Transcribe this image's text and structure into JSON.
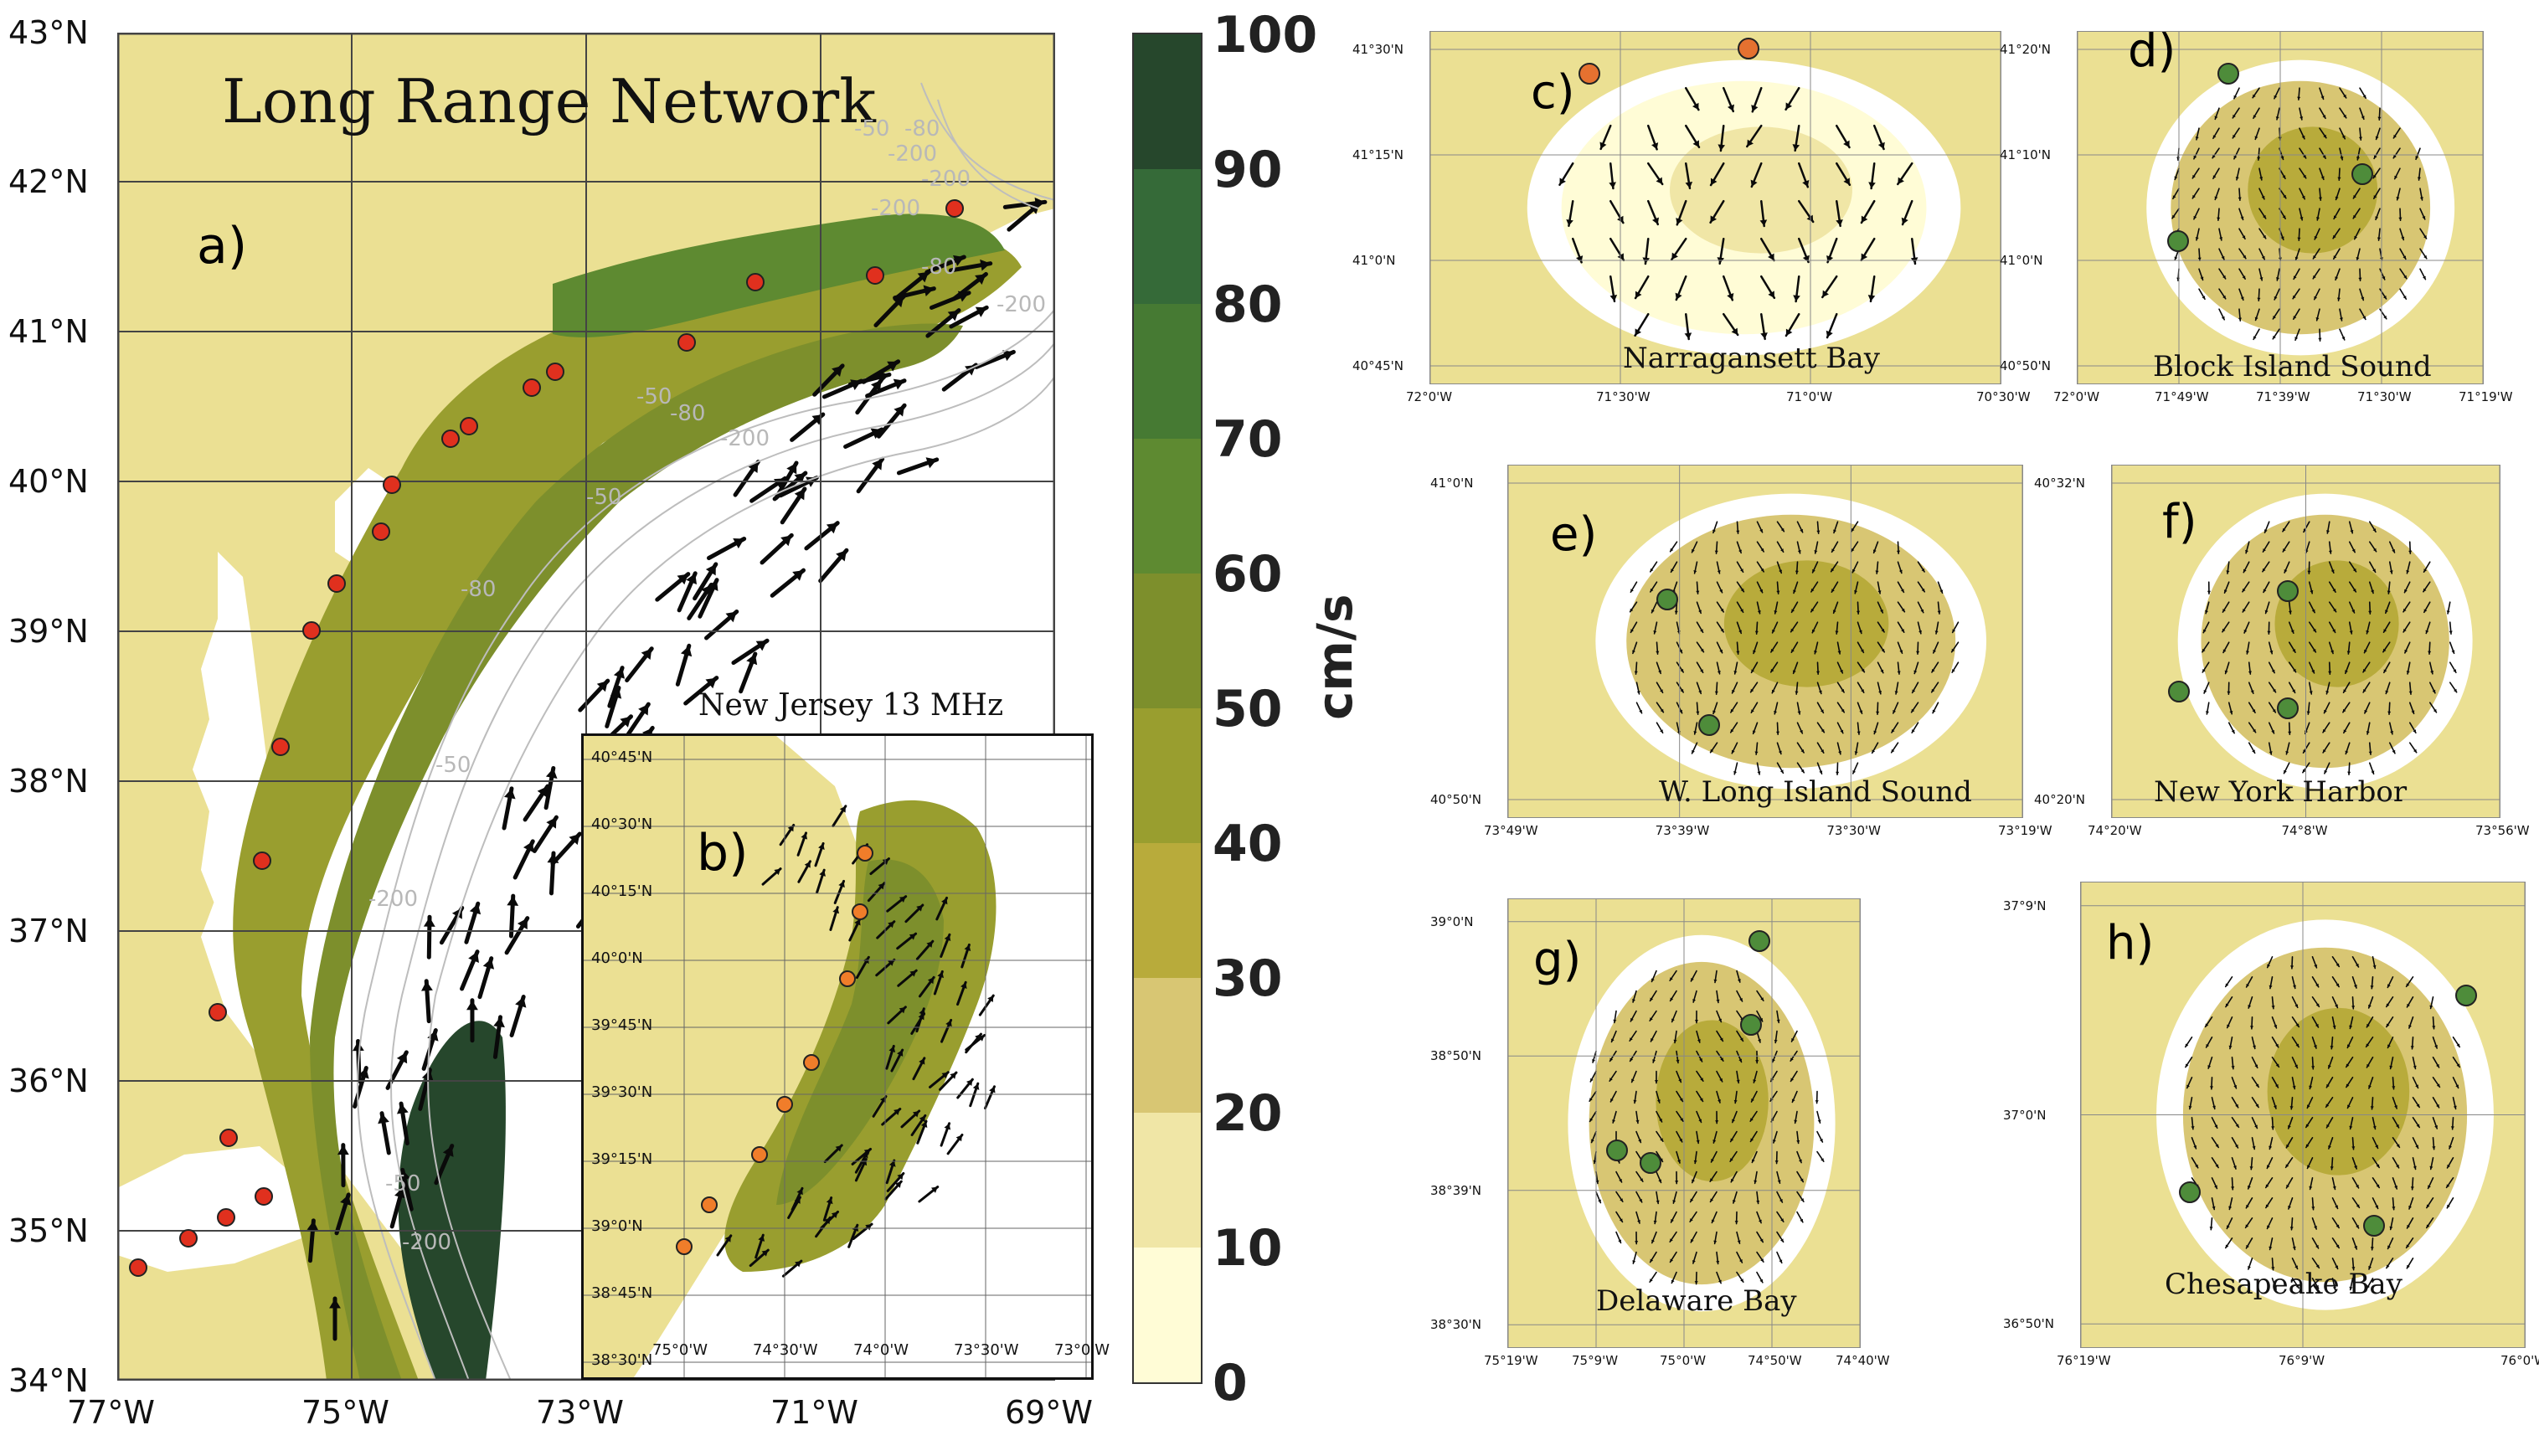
{
  "main_map": {
    "title": "Long Range Network",
    "label": "a)",
    "lat_ticks": [
      "43°N",
      "42°N",
      "41°N",
      "40°N",
      "39°N",
      "38°N",
      "37°N",
      "36°N",
      "35°N",
      "34°N"
    ],
    "lon_ticks": [
      "77°W",
      "75°W",
      "73°W",
      "71°W",
      "69°W"
    ],
    "contour_labels": [
      "-200",
      "-50",
      "-80",
      "-200",
      "-200",
      "-80",
      "-200",
      "-50",
      "-80",
      "-200",
      "-50",
      "-80",
      "-50",
      "-200",
      "-50",
      "-200",
      "-80"
    ],
    "colors": {
      "land": "#ebe093",
      "water": "#ffffff",
      "frame": "#444444",
      "site": "#e0301e",
      "arrow": "#0a0a0a"
    }
  },
  "inset_b": {
    "title": "New Jersey 13 MHz",
    "label": "b)",
    "lat_ticks": [
      "40°45'N",
      "40°30'N",
      "40°15'N",
      "40°0'N",
      "39°45'N",
      "39°30'N",
      "39°15'N",
      "39°0'N",
      "38°45'N",
      "38°30'N"
    ],
    "lon_ticks": [
      "75°0'W",
      "74°30'W",
      "74°0'W",
      "73°30'W",
      "73°0'W"
    ],
    "site_color": "#f07d2a"
  },
  "colorbar": {
    "unit": "cm/s",
    "ticks": [
      "100",
      "90",
      "80",
      "70",
      "60",
      "50",
      "40",
      "30",
      "20",
      "10",
      "0"
    ],
    "colors": [
      "#fffcd6",
      "#f0e6a6",
      "#d8c673",
      "#b8ab3b",
      "#999e2f",
      "#7d8f2c",
      "#5e8a31",
      "#467a33",
      "#356a38",
      "#26472c",
      "#13201a"
    ]
  },
  "panels": [
    {
      "key": "c",
      "label": "c)",
      "title": "Narragansett Bay",
      "lat_ticks": [
        "41°30'N",
        "41°15'N",
        "41°0'N",
        "40°45'N"
      ],
      "lon_ticks": [
        "72°0'W",
        "71°30'W",
        "71°0'W",
        "70°30'W"
      ]
    },
    {
      "key": "d",
      "label": "d)",
      "title": "Block Island Sound",
      "lat_ticks": [
        "41°20'N",
        "41°10'N",
        "41°0'N",
        "40°50'N"
      ],
      "lon_ticks": [
        "72°0'W",
        "71°49'W",
        "71°39'W",
        "71°30'W",
        "71°19'W"
      ]
    },
    {
      "key": "e",
      "label": "e)",
      "title": "W. Long Island Sound",
      "lat_ticks": [
        "41°0'N",
        "40°50'N"
      ],
      "lon_ticks": [
        "73°49'W",
        "73°39'W",
        "73°30'W",
        "73°19'W"
      ]
    },
    {
      "key": "f",
      "label": "f)",
      "title": "New York Harbor",
      "lat_ticks": [
        "40°32'N",
        "40°20'N"
      ],
      "lon_ticks": [
        "74°20'W",
        "74°8'W",
        "73°56'W"
      ]
    },
    {
      "key": "g",
      "label": "g)",
      "title": "Delaware Bay",
      "lat_ticks": [
        "39°0'N",
        "38°50'N",
        "38°39'N",
        "38°30'N"
      ],
      "lon_ticks": [
        "75°19'W",
        "75°9'W",
        "75°0'W",
        "74°50'W",
        "74°40'W"
      ]
    },
    {
      "key": "h",
      "label": "h)",
      "title": "Chesapeake Bay",
      "lat_ticks": [
        "37°9'N",
        "37°0'N",
        "36°50'N"
      ],
      "lon_ticks": [
        "76°19'W",
        "76°9'W",
        "76°0'W"
      ]
    }
  ],
  "small_site_color": "#4e8c3a"
}
